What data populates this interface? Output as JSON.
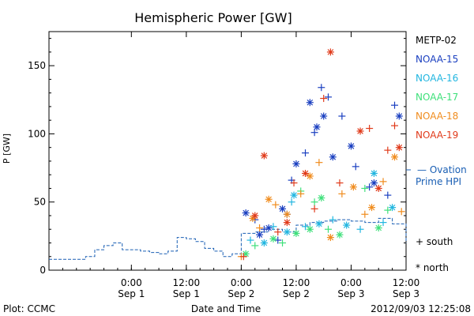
{
  "chart_data": {
    "type": "scatter",
    "title": "Hemispheric Power [GW]",
    "ylabel": "P [GW]",
    "xlabel": "Date and Time",
    "ylim": [
      0,
      175
    ],
    "xlim": [
      "2012-08-31T06:00",
      "2012-09-03T12:00"
    ],
    "yticks": [
      0,
      50,
      100,
      150
    ],
    "xticks": [
      {
        "t": "2012-09-01T00:00",
        "line1": "0:00",
        "line2": "Sep 1"
      },
      {
        "t": "2012-09-01T12:00",
        "line1": "12:00",
        "line2": "Sep 1"
      },
      {
        "t": "2012-09-02T00:00",
        "line1": "0:00",
        "line2": "Sep 2"
      },
      {
        "t": "2012-09-02T12:00",
        "line1": "12:00",
        "line2": "Sep 2"
      },
      {
        "t": "2012-09-03T00:00",
        "line1": "0:00",
        "line2": "Sep 3"
      },
      {
        "t": "2012-09-03T12:00",
        "line1": "12:00",
        "line2": "Sep 3"
      }
    ],
    "legend": {
      "placement": "right",
      "entries": [
        {
          "name": "METP-02",
          "color": "#000000"
        },
        {
          "name": "NOAA-15",
          "color": "#1a3fc0"
        },
        {
          "name": "NOAA-16",
          "color": "#22b6e0"
        },
        {
          "name": "NOAA-17",
          "color": "#3ee07a"
        },
        {
          "name": "NOAA-18",
          "color": "#f08c1e"
        },
        {
          "name": "NOAA-19",
          "color": "#e03a1a"
        }
      ],
      "ovation_label_1": "— Ovation",
      "ovation_label_2": "Prime HPI",
      "ovation_color": "#1a5fb4",
      "south_label": "+ south",
      "north_label": "* north"
    },
    "ovation_series": {
      "name": "Ovation Prime HPI",
      "x": [
        "2012-08-31T06:00",
        "2012-08-31T10:00",
        "2012-08-31T14:00",
        "2012-08-31T16:00",
        "2012-08-31T18:00",
        "2012-08-31T20:00",
        "2012-08-31T22:00",
        "2012-09-01T02:00",
        "2012-09-01T04:00",
        "2012-09-01T06:00",
        "2012-09-01T08:00",
        "2012-09-01T10:00",
        "2012-09-01T12:00",
        "2012-09-01T14:00",
        "2012-09-01T16:00",
        "2012-09-01T18:00",
        "2012-09-01T20:00",
        "2012-09-01T22:00",
        "2012-09-02T00:00",
        "2012-09-02T03:00",
        "2012-09-02T06:00",
        "2012-09-02T09:00",
        "2012-09-02T12:00",
        "2012-09-02T15:00",
        "2012-09-02T18:00",
        "2012-09-02T21:00",
        "2012-09-03T00:00",
        "2012-09-03T03:00",
        "2012-09-03T06:00",
        "2012-09-03T09:00",
        "2012-09-03T12:00"
      ],
      "values": [
        8,
        8,
        10,
        15,
        18,
        20,
        15,
        14,
        13,
        12,
        14,
        24,
        23,
        21,
        16,
        14,
        10,
        12,
        27,
        28,
        30,
        28,
        33,
        35,
        36,
        37,
        36,
        35,
        38,
        34,
        20
      ]
    },
    "points": [
      {
        "sat": "NOAA-15",
        "hemi": "south",
        "t": "2012-09-02T08:00",
        "v": 22
      },
      {
        "sat": "NOAA-15",
        "hemi": "south",
        "t": "2012-09-02T11:00",
        "v": 66
      },
      {
        "sat": "NOAA-15",
        "hemi": "north",
        "t": "2012-09-02T12:00",
        "v": 78
      },
      {
        "sat": "NOAA-15",
        "hemi": "south",
        "t": "2012-09-02T14:00",
        "v": 86
      },
      {
        "sat": "NOAA-15",
        "hemi": "north",
        "t": "2012-09-02T15:00",
        "v": 123
      },
      {
        "sat": "NOAA-15",
        "hemi": "south",
        "t": "2012-09-02T16:00",
        "v": 101
      },
      {
        "sat": "NOAA-15",
        "hemi": "north",
        "t": "2012-09-02T16:30",
        "v": 105
      },
      {
        "sat": "NOAA-15",
        "hemi": "south",
        "t": "2012-09-02T17:30",
        "v": 134
      },
      {
        "sat": "NOAA-15",
        "hemi": "south",
        "t": "2012-09-02T19:00",
        "v": 127
      },
      {
        "sat": "NOAA-15",
        "hemi": "north",
        "t": "2012-09-02T18:00",
        "v": 113
      },
      {
        "sat": "NOAA-15",
        "hemi": "north",
        "t": "2012-09-02T20:00",
        "v": 83
      },
      {
        "sat": "NOAA-15",
        "hemi": "south",
        "t": "2012-09-02T22:00",
        "v": 113
      },
      {
        "sat": "NOAA-15",
        "hemi": "north",
        "t": "2012-09-03T00:00",
        "v": 91
      },
      {
        "sat": "NOAA-15",
        "hemi": "south",
        "t": "2012-09-03T01:00",
        "v": 76
      },
      {
        "sat": "NOAA-15",
        "hemi": "south",
        "t": "2012-09-03T04:00",
        "v": 61
      },
      {
        "sat": "NOAA-15",
        "hemi": "north",
        "t": "2012-09-03T05:00",
        "v": 64
      },
      {
        "sat": "NOAA-15",
        "hemi": "south",
        "t": "2012-09-03T08:00",
        "v": 55
      },
      {
        "sat": "NOAA-15",
        "hemi": "south",
        "t": "2012-09-03T09:30",
        "v": 121
      },
      {
        "sat": "NOAA-15",
        "hemi": "north",
        "t": "2012-09-03T10:30",
        "v": 113
      },
      {
        "sat": "NOAA-15",
        "hemi": "north",
        "t": "2012-09-02T01:00",
        "v": 42
      },
      {
        "sat": "NOAA-15",
        "hemi": "south",
        "t": "2012-09-02T03:00",
        "v": 37
      },
      {
        "sat": "NOAA-15",
        "hemi": "north",
        "t": "2012-09-02T04:00",
        "v": 26
      },
      {
        "sat": "NOAA-15",
        "hemi": "south",
        "t": "2012-09-02T05:00",
        "v": 30
      },
      {
        "sat": "NOAA-15",
        "hemi": "north",
        "t": "2012-09-02T06:00",
        "v": 31
      },
      {
        "sat": "NOAA-15",
        "hemi": "north",
        "t": "2012-09-02T09:00",
        "v": 45
      },
      {
        "sat": "NOAA-15",
        "hemi": "south",
        "t": "2012-09-02T10:00",
        "v": 41
      },
      {
        "sat": "NOAA-16",
        "hemi": "south",
        "t": "2012-09-02T02:00",
        "v": 22
      },
      {
        "sat": "NOAA-16",
        "hemi": "north",
        "t": "2012-09-02T05:00",
        "v": 20
      },
      {
        "sat": "NOAA-16",
        "hemi": "south",
        "t": "2012-09-02T07:00",
        "v": 32
      },
      {
        "sat": "NOAA-16",
        "hemi": "north",
        "t": "2012-09-02T10:00",
        "v": 28
      },
      {
        "sat": "NOAA-16",
        "hemi": "south",
        "t": "2012-09-02T11:00",
        "v": 50
      },
      {
        "sat": "NOAA-16",
        "hemi": "north",
        "t": "2012-09-02T11:30",
        "v": 55
      },
      {
        "sat": "NOAA-16",
        "hemi": "south",
        "t": "2012-09-02T14:00",
        "v": 32
      },
      {
        "sat": "NOAA-16",
        "hemi": "north",
        "t": "2012-09-02T17:00",
        "v": 34
      },
      {
        "sat": "NOAA-16",
        "hemi": "south",
        "t": "2012-09-02T20:00",
        "v": 37
      },
      {
        "sat": "NOAA-16",
        "hemi": "north",
        "t": "2012-09-02T23:00",
        "v": 33
      },
      {
        "sat": "NOAA-16",
        "hemi": "south",
        "t": "2012-09-03T02:00",
        "v": 30
      },
      {
        "sat": "NOAA-16",
        "hemi": "north",
        "t": "2012-09-03T05:00",
        "v": 71
      },
      {
        "sat": "NOAA-16",
        "hemi": "south",
        "t": "2012-09-03T07:00",
        "v": 35
      },
      {
        "sat": "NOAA-16",
        "hemi": "north",
        "t": "2012-09-03T09:00",
        "v": 46
      },
      {
        "sat": "NOAA-17",
        "hemi": "north",
        "t": "2012-09-02T01:00",
        "v": 12
      },
      {
        "sat": "NOAA-17",
        "hemi": "south",
        "t": "2012-09-02T03:00",
        "v": 18
      },
      {
        "sat": "NOAA-17",
        "hemi": "north",
        "t": "2012-09-02T07:00",
        "v": 23
      },
      {
        "sat": "NOAA-17",
        "hemi": "south",
        "t": "2012-09-02T09:00",
        "v": 20
      },
      {
        "sat": "NOAA-17",
        "hemi": "north",
        "t": "2012-09-02T12:00",
        "v": 27
      },
      {
        "sat": "NOAA-17",
        "hemi": "south",
        "t": "2012-09-02T13:00",
        "v": 58
      },
      {
        "sat": "NOAA-17",
        "hemi": "north",
        "t": "2012-09-02T15:00",
        "v": 30
      },
      {
        "sat": "NOAA-17",
        "hemi": "south",
        "t": "2012-09-02T16:00",
        "v": 50
      },
      {
        "sat": "NOAA-17",
        "hemi": "north",
        "t": "2012-09-02T17:30",
        "v": 53
      },
      {
        "sat": "NOAA-17",
        "hemi": "south",
        "t": "2012-09-02T19:00",
        "v": 30
      },
      {
        "sat": "NOAA-17",
        "hemi": "north",
        "t": "2012-09-02T21:30",
        "v": 26
      },
      {
        "sat": "NOAA-17",
        "hemi": "south",
        "t": "2012-09-03T03:00",
        "v": 60
      },
      {
        "sat": "NOAA-17",
        "hemi": "north",
        "t": "2012-09-03T06:00",
        "v": 31
      },
      {
        "sat": "NOAA-17",
        "hemi": "south",
        "t": "2012-09-03T08:00",
        "v": 44
      },
      {
        "sat": "NOAA-18",
        "hemi": "south",
        "t": "2012-09-02T00:00",
        "v": 10
      },
      {
        "sat": "NOAA-18",
        "hemi": "north",
        "t": "2012-09-02T02:30",
        "v": 38
      },
      {
        "sat": "NOAA-18",
        "hemi": "south",
        "t": "2012-09-02T04:00",
        "v": 31
      },
      {
        "sat": "NOAA-18",
        "hemi": "north",
        "t": "2012-09-02T06:00",
        "v": 52
      },
      {
        "sat": "NOAA-18",
        "hemi": "south",
        "t": "2012-09-02T07:30",
        "v": 48
      },
      {
        "sat": "NOAA-18",
        "hemi": "north",
        "t": "2012-09-02T10:00",
        "v": 41
      },
      {
        "sat": "NOAA-18",
        "hemi": "south",
        "t": "2012-09-02T13:00",
        "v": 56
      },
      {
        "sat": "NOAA-18",
        "hemi": "north",
        "t": "2012-09-02T15:00",
        "v": 69
      },
      {
        "sat": "NOAA-18",
        "hemi": "south",
        "t": "2012-09-02T17:00",
        "v": 79
      },
      {
        "sat": "NOAA-18",
        "hemi": "north",
        "t": "2012-09-02T19:30",
        "v": 24
      },
      {
        "sat": "NOAA-18",
        "hemi": "south",
        "t": "2012-09-02T22:00",
        "v": 56
      },
      {
        "sat": "NOAA-18",
        "hemi": "north",
        "t": "2012-09-03T00:30",
        "v": 61
      },
      {
        "sat": "NOAA-18",
        "hemi": "south",
        "t": "2012-09-03T03:00",
        "v": 41
      },
      {
        "sat": "NOAA-18",
        "hemi": "north",
        "t": "2012-09-03T04:30",
        "v": 46
      },
      {
        "sat": "NOAA-18",
        "hemi": "south",
        "t": "2012-09-03T07:00",
        "v": 65
      },
      {
        "sat": "NOAA-18",
        "hemi": "north",
        "t": "2012-09-03T09:30",
        "v": 83
      },
      {
        "sat": "NOAA-18",
        "hemi": "south",
        "t": "2012-09-03T11:00",
        "v": 43
      },
      {
        "sat": "NOAA-19",
        "hemi": "north",
        "t": "2012-09-02T05:00",
        "v": 84
      },
      {
        "sat": "NOAA-19",
        "hemi": "south",
        "t": "2012-09-02T00:30",
        "v": 10
      },
      {
        "sat": "NOAA-19",
        "hemi": "north",
        "t": "2012-09-02T03:00",
        "v": 40
      },
      {
        "sat": "NOAA-19",
        "hemi": "south",
        "t": "2012-09-02T08:00",
        "v": 28
      },
      {
        "sat": "NOAA-19",
        "hemi": "north",
        "t": "2012-09-02T10:00",
        "v": 35
      },
      {
        "sat": "NOAA-19",
        "hemi": "south",
        "t": "2012-09-02T11:30",
        "v": 64
      },
      {
        "sat": "NOAA-19",
        "hemi": "north",
        "t": "2012-09-02T14:00",
        "v": 71
      },
      {
        "sat": "NOAA-19",
        "hemi": "south",
        "t": "2012-09-02T16:00",
        "v": 45
      },
      {
        "sat": "NOAA-19",
        "hemi": "south",
        "t": "2012-09-02T18:00",
        "v": 126
      },
      {
        "sat": "NOAA-19",
        "hemi": "north",
        "t": "2012-09-02T19:30",
        "v": 160
      },
      {
        "sat": "NOAA-19",
        "hemi": "south",
        "t": "2012-09-02T21:30",
        "v": 64
      },
      {
        "sat": "NOAA-19",
        "hemi": "north",
        "t": "2012-09-03T02:00",
        "v": 102
      },
      {
        "sat": "NOAA-19",
        "hemi": "south",
        "t": "2012-09-03T04:00",
        "v": 104
      },
      {
        "sat": "NOAA-19",
        "hemi": "north",
        "t": "2012-09-03T06:00",
        "v": 60
      },
      {
        "sat": "NOAA-19",
        "hemi": "south",
        "t": "2012-09-03T08:00",
        "v": 88
      },
      {
        "sat": "NOAA-19",
        "hemi": "south",
        "t": "2012-09-03T09:30",
        "v": 106
      },
      {
        "sat": "NOAA-19",
        "hemi": "north",
        "t": "2012-09-03T10:30",
        "v": 90
      }
    ]
  },
  "footer": {
    "plot_label": "Plot: CCMC",
    "timestamp": "2012/09/03 12:25:08"
  }
}
